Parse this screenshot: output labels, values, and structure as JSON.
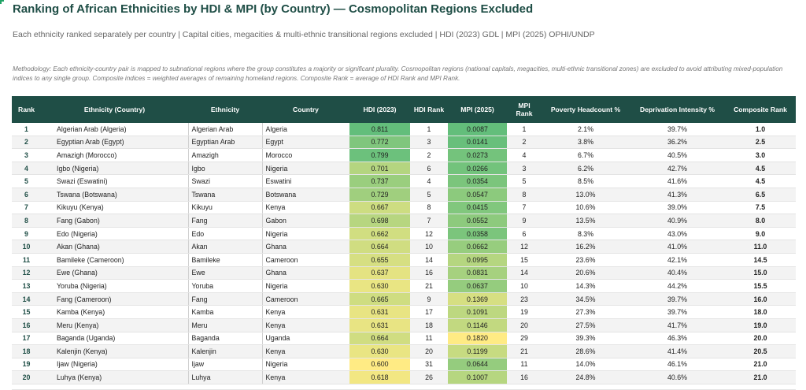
{
  "title": "Ranking of African Ethnicities by HDI & MPI (by Country) — Cosmopolitan Regions Excluded",
  "subtitle": "Each ethnicity ranked separately per country | Capital cities, megacities & multi-ethnic transitional regions excluded | HDI (2023) GDL | MPI (2025) OPHI/UNDP",
  "methodology": "Methodology: Each ethnicity-country pair is mapped to subnational regions where the group constitutes a majority or significant plurality. Cosmopolitan regions (national capitals, megacities, multi-ethnic transitional zones) are excluded to avoid attributing mixed-population indices to any single group. Composite indices = weighted averages of remaining homeland regions. Composite Rank = average of HDI Rank and MPI Rank.",
  "columns": [
    "Rank",
    "Ethnicity (Country)",
    "Ethnicity",
    "Country",
    "HDI (2023)",
    "HDI Rank",
    "MPI (2025)",
    "MPI Rank",
    "Poverty Headcount %",
    "Deprivation Intensity %",
    "Composite Rank"
  ],
  "rows": [
    [
      "1",
      "Algerian Arab (Algeria)",
      "Algerian Arab",
      "Algeria",
      "0.811",
      "1",
      "0.0087",
      "1",
      "2.1%",
      "39.7%",
      "1.0"
    ],
    [
      "2",
      "Egyptian Arab (Egypt)",
      "Egyptian Arab",
      "Egypt",
      "0.772",
      "3",
      "0.0141",
      "2",
      "3.8%",
      "36.2%",
      "2.5"
    ],
    [
      "3",
      "Amazigh (Morocco)",
      "Amazigh",
      "Morocco",
      "0.799",
      "2",
      "0.0273",
      "4",
      "6.7%",
      "40.5%",
      "3.0"
    ],
    [
      "4",
      "Igbo (Nigeria)",
      "Igbo",
      "Nigeria",
      "0.701",
      "6",
      "0.0266",
      "3",
      "6.2%",
      "42.7%",
      "4.5"
    ],
    [
      "5",
      "Swazi (Eswatini)",
      "Swazi",
      "Eswatini",
      "0.737",
      "4",
      "0.0354",
      "5",
      "8.5%",
      "41.6%",
      "4.5"
    ],
    [
      "6",
      "Tswana (Botswana)",
      "Tswana",
      "Botswana",
      "0.729",
      "5",
      "0.0547",
      "8",
      "13.0%",
      "41.3%",
      "6.5"
    ],
    [
      "7",
      "Kikuyu (Kenya)",
      "Kikuyu",
      "Kenya",
      "0.667",
      "8",
      "0.0415",
      "7",
      "10.6%",
      "39.0%",
      "7.5"
    ],
    [
      "8",
      "Fang (Gabon)",
      "Fang",
      "Gabon",
      "0.698",
      "7",
      "0.0552",
      "9",
      "13.5%",
      "40.9%",
      "8.0"
    ],
    [
      "9",
      "Edo (Nigeria)",
      "Edo",
      "Nigeria",
      "0.662",
      "12",
      "0.0358",
      "6",
      "8.3%",
      "43.0%",
      "9.0"
    ],
    [
      "10",
      "Akan (Ghana)",
      "Akan",
      "Ghana",
      "0.664",
      "10",
      "0.0662",
      "12",
      "16.2%",
      "41.0%",
      "11.0"
    ],
    [
      "11",
      "Bamileke (Cameroon)",
      "Bamileke",
      "Cameroon",
      "0.655",
      "14",
      "0.0995",
      "15",
      "23.6%",
      "42.1%",
      "14.5"
    ],
    [
      "12",
      "Ewe (Ghana)",
      "Ewe",
      "Ghana",
      "0.637",
      "16",
      "0.0831",
      "14",
      "20.6%",
      "40.4%",
      "15.0"
    ],
    [
      "13",
      "Yoruba (Nigeria)",
      "Yoruba",
      "Nigeria",
      "0.630",
      "21",
      "0.0637",
      "10",
      "14.3%",
      "44.2%",
      "15.5"
    ],
    [
      "14",
      "Fang (Cameroon)",
      "Fang",
      "Cameroon",
      "0.665",
      "9",
      "0.1369",
      "23",
      "34.5%",
      "39.7%",
      "16.0"
    ],
    [
      "15",
      "Kamba (Kenya)",
      "Kamba",
      "Kenya",
      "0.631",
      "17",
      "0.1091",
      "19",
      "27.3%",
      "39.7%",
      "18.0"
    ],
    [
      "16",
      "Meru (Kenya)",
      "Meru",
      "Kenya",
      "0.631",
      "18",
      "0.1146",
      "20",
      "27.5%",
      "41.7%",
      "19.0"
    ],
    [
      "17",
      "Baganda (Uganda)",
      "Baganda",
      "Uganda",
      "0.664",
      "11",
      "0.1820",
      "29",
      "39.3%",
      "46.3%",
      "20.0"
    ],
    [
      "18",
      "Kalenjin (Kenya)",
      "Kalenjin",
      "Kenya",
      "0.630",
      "20",
      "0.1199",
      "21",
      "28.6%",
      "41.4%",
      "20.5"
    ],
    [
      "19",
      "Ijaw (Nigeria)",
      "Ijaw",
      "Nigeria",
      "0.600",
      "31",
      "0.0644",
      "11",
      "14.0%",
      "46.1%",
      "21.0"
    ],
    [
      "20",
      "Luhya (Kenya)",
      "Luhya",
      "Kenya",
      "0.618",
      "26",
      "0.1007",
      "16",
      "24.8%",
      "40.6%",
      "21.0"
    ]
  ],
  "colors": {
    "header_bg": "#1f4e46",
    "title": "#1f4e46",
    "heat_high": "#63be7b",
    "heat_low": "#ffeb84"
  }
}
